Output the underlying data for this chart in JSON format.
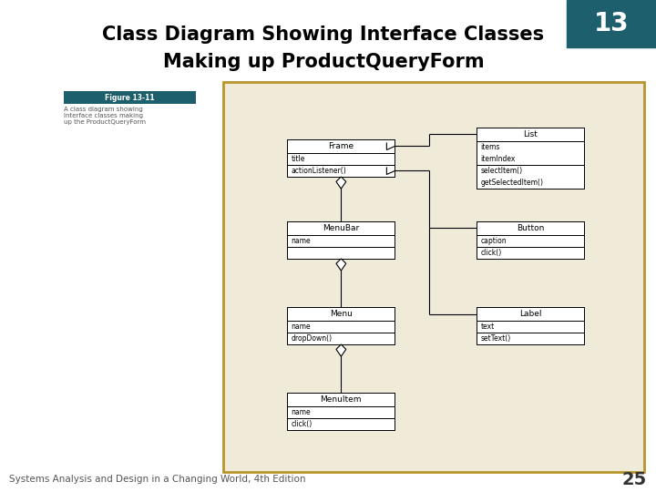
{
  "title_line1": "Class Diagram Showing Interface Classes",
  "title_line2": "Making up ProductQueryForm",
  "slide_number": "13",
  "page_number": "25",
  "footer": "Systems Analysis and Design in a Changing World, 4th Edition",
  "figure_label": "Figure 13-11",
  "figure_caption": "A class diagram showing\ninterface classes making\nup the ProductQueryForm",
  "bg_color": "#f0ead8",
  "border_color": "#b8962e",
  "box_bg": "#ffffff",
  "box_border": "#000000",
  "title_color": "#000000",
  "corner_bg": "#1e5f6e",
  "title_fontsize": 15,
  "subtitle_fontsize": 15,
  "footer_fontsize": 7.5,
  "page_num_fontsize": 14
}
